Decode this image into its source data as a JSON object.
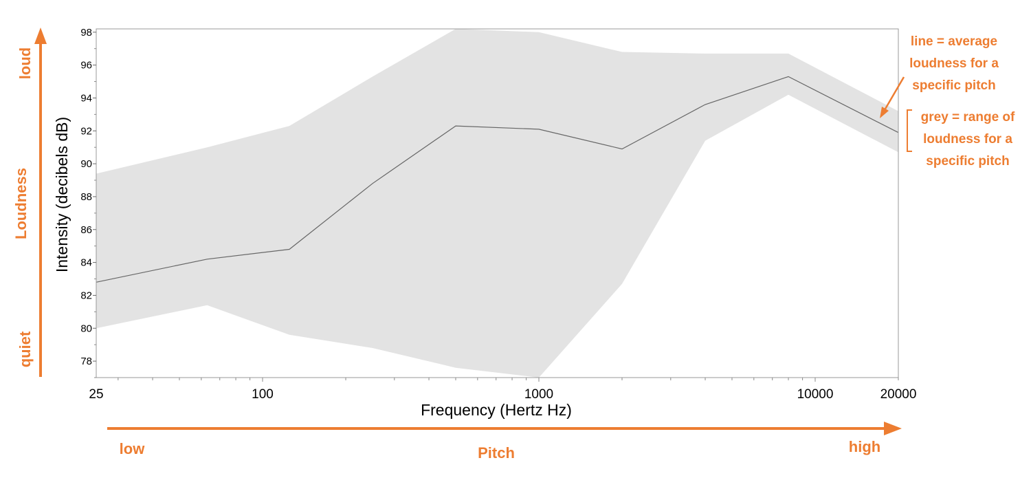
{
  "chart_data": {
    "type": "area",
    "xlabel": "Frequency (Hertz Hz)",
    "ylabel": "Intensity  (decibels dB)",
    "x_scale": "log",
    "xlim": [
      25,
      20000
    ],
    "ylim": [
      77,
      98.2
    ],
    "x_ticks": [
      25,
      100,
      1000,
      10000,
      20000
    ],
    "y_ticks": [
      78,
      80,
      82,
      84,
      86,
      88,
      90,
      92,
      94,
      96,
      98
    ],
    "grid": false,
    "x": [
      25,
      63,
      125,
      250,
      500,
      1000,
      2000,
      4000,
      8000,
      20000
    ],
    "average": [
      82.8,
      84.2,
      84.8,
      88.8,
      92.3,
      92.1,
      90.9,
      93.6,
      95.3,
      91.9
    ],
    "range_max": [
      89.4,
      91.0,
      92.3,
      95.3,
      98.2,
      98.0,
      96.8,
      96.7,
      96.7,
      93.2
    ],
    "range_min": [
      80.0,
      81.4,
      79.6,
      78.8,
      77.6,
      77.0,
      82.7,
      91.4,
      94.2,
      90.7
    ],
    "line_color": "#666666",
    "band_color": "#E3E3E3"
  },
  "annotations": {
    "accent_color": "#ED7D31",
    "y_axis_name": "Loudness",
    "y_axis_low": "quiet",
    "y_axis_high": "loud",
    "x_axis_name": "Pitch",
    "x_axis_low": "low",
    "x_axis_high": "high",
    "legend_line": [
      "line = average",
      "loudness for a",
      "specific pitch"
    ],
    "legend_band": [
      "grey = range of",
      "loudness for a",
      "specific pitch"
    ]
  }
}
